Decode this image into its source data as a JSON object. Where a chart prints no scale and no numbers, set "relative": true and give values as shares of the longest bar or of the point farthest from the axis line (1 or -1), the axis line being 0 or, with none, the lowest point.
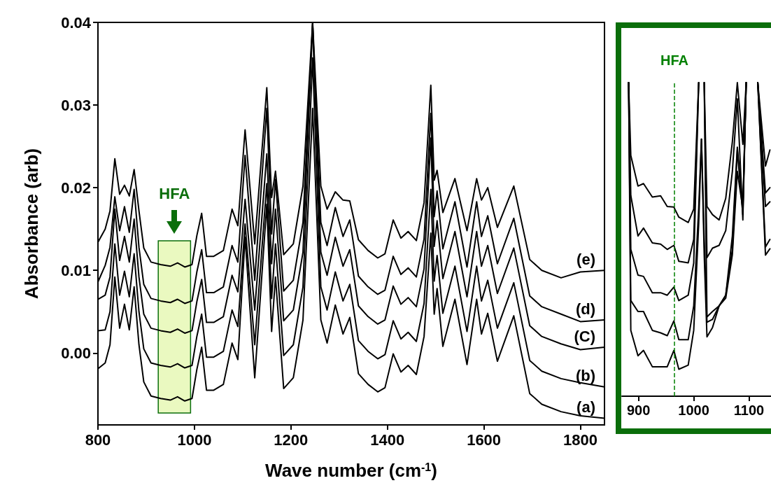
{
  "chart_data": [
    {
      "type": "line",
      "xlabel": "Wave number (cm$^{-1}$)",
      "ylabel": "Absorbance (arb)",
      "marker": "none",
      "x": [
        800,
        815,
        825,
        835,
        845,
        855,
        865,
        875,
        885,
        895,
        910,
        930,
        950,
        965,
        980,
        995,
        1005,
        1015,
        1025,
        1040,
        1060,
        1078,
        1090,
        1105,
        1125,
        1150,
        1160,
        1168,
        1185,
        1205,
        1225,
        1245,
        1262,
        1275,
        1292,
        1308,
        1322,
        1340,
        1360,
        1380,
        1395,
        1412,
        1428,
        1443,
        1460,
        1476,
        1490,
        1497,
        1503,
        1515,
        1540,
        1565,
        1585,
        1595,
        1608,
        1628,
        1662,
        1695,
        1720,
        1760,
        1800,
        1850
      ],
      "series": [
        {
          "name": "(a)",
          "color": "#000000",
          "values": [
            -0.0019,
            -0.0012,
            0.001,
            0.0092,
            0.003,
            0.0059,
            0.0028,
            0.008,
            0.001,
            -0.0035,
            -0.0052,
            -0.0055,
            -0.0057,
            -0.0053,
            -0.0058,
            -0.0055,
            -0.002,
            0.0007,
            -0.0045,
            -0.0045,
            -0.0038,
            0.0012,
            -0.0008,
            0.014,
            -0.003,
            0.018,
            0.0026,
            0.0092,
            -0.0043,
            -0.003,
            0.004,
            0.0296,
            0.004,
            0.0012,
            0.0058,
            0.0023,
            0.0043,
            -0.0025,
            -0.0038,
            -0.0047,
            -0.0042,
            -0.0001,
            -0.0023,
            -0.0015,
            -0.0026,
            0.002,
            0.0145,
            0.0047,
            0.0078,
            0.0008,
            0.0065,
            -0.0014,
            0.0065,
            0.0023,
            0.0048,
            -0.001,
            0.0045,
            -0.0049,
            -0.0062,
            -0.0071,
            -0.0076,
            -0.0079
          ]
        },
        {
          "name": "(b)",
          "color": "#000000",
          "values": [
            0.0027,
            0.0028,
            0.005,
            0.0132,
            0.007,
            0.0099,
            0.0068,
            0.012,
            0.005,
            0.0005,
            -0.0012,
            -0.0015,
            -0.0017,
            -0.0013,
            -0.0018,
            -0.0015,
            0.002,
            0.0047,
            -0.0005,
            -0.0005,
            0.0002,
            0.0052,
            0.0032,
            0.0156,
            0.001,
            0.0205,
            0.0066,
            0.0132,
            -0.0003,
            0.001,
            0.008,
            0.0357,
            0.008,
            0.0052,
            0.0098,
            0.0063,
            0.0083,
            0.0015,
            0.0002,
            -0.0007,
            -0.0002,
            0.0039,
            0.0017,
            0.0025,
            0.0014,
            0.006,
            0.0198,
            0.0087,
            0.0118,
            0.0048,
            0.0105,
            0.0026,
            0.0105,
            0.0063,
            0.0088,
            0.003,
            0.0085,
            -0.0009,
            -0.0022,
            -0.0031,
            -0.0036,
            -0.0041
          ]
        },
        {
          "name": "(C)",
          "color": "#000000",
          "values": [
            0.0065,
            0.007,
            0.0092,
            0.0174,
            0.0112,
            0.0141,
            0.011,
            0.0162,
            0.0092,
            0.0047,
            0.003,
            0.0027,
            0.0025,
            0.0029,
            0.0024,
            0.0027,
            0.0062,
            0.0089,
            0.0037,
            0.0037,
            0.0044,
            0.0094,
            0.0074,
            0.0186,
            0.0052,
            0.0241,
            0.0108,
            0.0174,
            0.0039,
            0.0052,
            0.0122,
            0.04,
            0.0122,
            0.0094,
            0.014,
            0.0105,
            0.0125,
            0.0057,
            0.0044,
            0.0035,
            0.004,
            0.0081,
            0.0059,
            0.0067,
            0.0056,
            0.0102,
            0.026,
            0.0129,
            0.016,
            0.009,
            0.0147,
            0.0068,
            0.0147,
            0.0105,
            0.013,
            0.0072,
            0.0127,
            0.0033,
            0.002,
            0.0011,
            0.0004,
            0.0007
          ]
        },
        {
          "name": "(d)",
          "color": "#000000",
          "values": [
            0.0086,
            0.0106,
            0.0128,
            0.0189,
            0.0148,
            0.0177,
            0.0146,
            0.0198,
            0.0128,
            0.0083,
            0.0066,
            0.0063,
            0.0061,
            0.0065,
            0.006,
            0.0063,
            0.0098,
            0.0125,
            0.0073,
            0.0073,
            0.008,
            0.013,
            0.011,
            0.0239,
            0.0088,
            0.0296,
            0.0144,
            0.021,
            0.0075,
            0.0088,
            0.0158,
            0.0398,
            0.0158,
            0.013,
            0.0176,
            0.0141,
            0.0161,
            0.0093,
            0.008,
            0.0071,
            0.0076,
            0.0117,
            0.0095,
            0.0103,
            0.0092,
            0.0138,
            0.029,
            0.0165,
            0.0196,
            0.0126,
            0.0183,
            0.0104,
            0.0183,
            0.0141,
            0.0166,
            0.0108,
            0.0163,
            0.0069,
            0.0056,
            0.0047,
            0.0038,
            0.004
          ]
        },
        {
          "name": "(e)",
          "color": "#000000",
          "values": [
            0.0134,
            0.015,
            0.0172,
            0.0235,
            0.0192,
            0.0203,
            0.019,
            0.0222,
            0.0172,
            0.0127,
            0.011,
            0.0107,
            0.0105,
            0.0109,
            0.0104,
            0.0107,
            0.0142,
            0.0169,
            0.0117,
            0.0117,
            0.0124,
            0.0174,
            0.0154,
            0.027,
            0.0132,
            0.0321,
            0.0188,
            0.022,
            0.0119,
            0.0132,
            0.0202,
            0.04,
            0.0202,
            0.0174,
            0.0195,
            0.0185,
            0.0184,
            0.0137,
            0.0124,
            0.0115,
            0.012,
            0.0161,
            0.0139,
            0.0147,
            0.0136,
            0.0182,
            0.0324,
            0.0209,
            0.0221,
            0.017,
            0.0211,
            0.0148,
            0.0211,
            0.0185,
            0.02,
            0.0152,
            0.0202,
            0.0113,
            0.01,
            0.0091,
            0.0098,
            0.01
          ]
        }
      ],
      "xlim": [
        800,
        1850
      ],
      "xticks": [
        800,
        1000,
        1200,
        1400,
        1600,
        1800
      ],
      "ylim": [
        -0.0087,
        0.04
      ],
      "yticks": [
        {
          "value": 0,
          "label": "0.00"
        },
        {
          "value": 0.01,
          "label": "0.01"
        },
        {
          "value": 0.02,
          "label": "0.02"
        },
        {
          "value": 0.03,
          "label": "0.03"
        },
        {
          "value": 0.04,
          "label": "0.04"
        }
      ],
      "bands": [
        {
          "axis": "x",
          "from": 925,
          "to": 992,
          "label": "HFA",
          "color": "#eaf9c0"
        }
      ]
    },
    {
      "type": "line",
      "relative": true,
      "marker": "none",
      "tick_labels": "x",
      "x": [
        882,
        886,
        899,
        909,
        925,
        940,
        952,
        964,
        973,
        990,
        1000,
        1009,
        1014,
        1019,
        1024,
        1034,
        1046,
        1058,
        1070,
        1079,
        1089,
        1095,
        1105,
        1116,
        1130,
        1138
      ],
      "series": [
        {
          "color": "#000000",
          "values": [
            1.0,
            0.768,
            0.67,
            0.678,
            0.635,
            0.639,
            0.605,
            0.603,
            0.571,
            0.554,
            0.597,
            1.0,
            null,
            1.0,
            0.605,
            0.579,
            0.562,
            0.631,
            0.811,
            1.0,
            0.803,
            1.0,
            null,
            1.0,
            0.734,
            0.785
          ]
        },
        {
          "color": "#000000",
          "values": [
            1.0,
            0.64,
            0.511,
            0.536,
            0.489,
            0.485,
            0.468,
            0.481,
            0.43,
            0.425,
            0.5,
            1.0,
            null,
            1.0,
            0.442,
            0.472,
            0.481,
            0.528,
            0.717,
            0.948,
            0.562,
            1.0,
            null,
            1.0,
            0.648,
            0.665
          ]
        },
        {
          "color": "#000000",
          "values": [
            1.0,
            0.468,
            0.386,
            0.382,
            0.33,
            0.33,
            0.322,
            0.348,
            0.305,
            0.322,
            0.425,
            1.0,
            null,
            1.0,
            0.253,
            0.27,
            0.288,
            0.322,
            0.511,
            0.794,
            0.597,
            1.0,
            null,
            1.0,
            0.605,
            0.62
          ]
        },
        {
          "color": "#000000",
          "values": [
            1.0,
            0.305,
            0.27,
            0.27,
            0.21,
            0.202,
            0.193,
            0.24,
            0.18,
            0.18,
            0.288,
            0.6,
            0.82,
            0.5,
            0.236,
            0.245,
            0.288,
            0.322,
            0.468,
            0.785,
            0.579,
            1.0,
            null,
            1.0,
            0.476,
            0.5
          ]
        },
        {
          "color": "#000000",
          "values": [
            1.0,
            0.21,
            0.129,
            0.146,
            0.094,
            0.094,
            0.094,
            0.146,
            0.086,
            0.099,
            0.21,
            0.55,
            0.82,
            0.45,
            0.189,
            0.219,
            0.288,
            0.313,
            0.451,
            0.717,
            0.597,
            1.0,
            null,
            1.0,
            0.45,
            0.47
          ]
        }
      ],
      "xlim": [
        870,
        1140
      ],
      "xticks": [
        900,
        1000,
        1100
      ],
      "ref_lines": [
        {
          "axis": "x",
          "value": 965,
          "label": "HFA",
          "color": "#008000",
          "line_style": "dashed"
        }
      ]
    }
  ]
}
